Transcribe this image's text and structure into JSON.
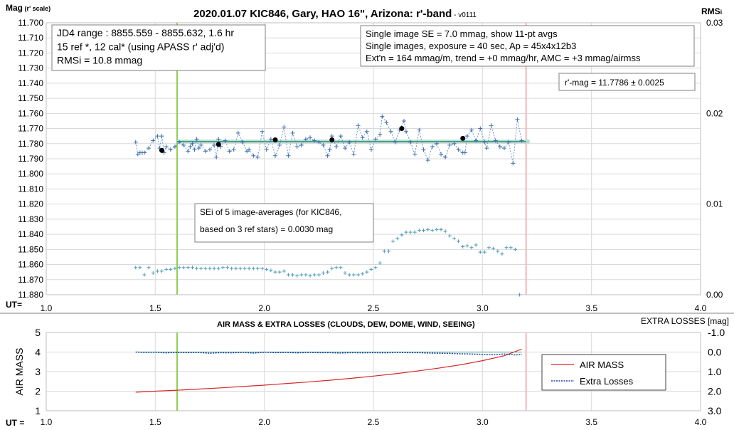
{
  "chart_data": [
    {
      "type": "scatter",
      "title": "2020.01.07 KIC846, Gary, HAO 16\", Arizona: r'-band",
      "version": " - v0111",
      "ylabel": "Mag",
      "ylabel_sub": " (r' scale)",
      "y2label": "RMS",
      "y2label_sub": "i",
      "xlabel": "UT=",
      "xlim": [
        1.0,
        4.0
      ],
      "ylim": [
        11.88,
        11.7
      ],
      "y2lim": [
        0.0,
        0.03
      ],
      "x_ticks": [
        "1.0",
        "1.5",
        "2.0",
        "2.5",
        "3.0",
        "3.5",
        "4.0"
      ],
      "y_ticks": [
        "11.700",
        "11.710",
        "11.720",
        "11.730",
        "11.740",
        "11.750",
        "11.760",
        "11.770",
        "11.780",
        "11.790",
        "11.800",
        "11.810",
        "11.820",
        "11.830",
        "11.840",
        "11.850",
        "11.860",
        "11.870",
        "11.880"
      ],
      "y2_ticks": [
        "0.03",
        "0.02",
        "0.01",
        "0.00"
      ],
      "vlines": [
        {
          "x": 1.6,
          "color": "#8fd14f"
        },
        {
          "x": 3.2,
          "color": "#f4b6b6"
        }
      ],
      "fit_line": {
        "x": [
          1.6,
          3.2
        ],
        "y": 11.7786
      },
      "info_left": [
        "JD4 range : 8855.559 - 8855.632,  1.6  hr",
        "15 ref *, 12 cal* (using APASS r' adj'd)",
        "RMSi = 10.8 mmag"
      ],
      "info_right": [
        "Single image SE = 7.0 mmag, show  11-pt avgs",
        "Single images, exposure = 40 sec, Ap = 45x4x12b3",
        "Ext'n = 164 mmag/m, trend =  +0 mmag/hr, AMC = +3 mmag/airmss"
      ],
      "rmag_label": "r'-mag = 11.7786 ± 0.0025",
      "sei_note": [
        "SEi of 5 image-averages (for KIC846,",
        "based on 3 ref stars) = 0.0030 mag"
      ],
      "series": [
        {
          "name": "single images",
          "color": "#4a7ebb",
          "x": [
            1.41,
            1.42,
            1.43,
            1.44,
            1.45,
            1.47,
            1.49,
            1.51,
            1.52,
            1.53,
            1.54,
            1.55,
            1.57,
            1.59,
            1.61,
            1.63,
            1.65,
            1.66,
            1.67,
            1.68,
            1.69,
            1.7,
            1.71,
            1.73,
            1.75,
            1.77,
            1.78,
            1.79,
            1.8,
            1.82,
            1.84,
            1.86,
            1.88,
            1.9,
            1.92,
            1.93,
            1.95,
            1.97,
            1.99,
            2.01,
            2.03,
            2.05,
            2.07,
            2.09,
            2.11,
            2.13,
            2.15,
            2.17,
            2.19,
            2.21,
            2.23,
            2.25,
            2.27,
            2.29,
            2.3,
            2.31,
            2.33,
            2.35,
            2.37,
            2.39,
            2.41,
            2.43,
            2.45,
            2.47,
            2.49,
            2.51,
            2.53,
            2.54,
            2.56,
            2.58,
            2.6,
            2.62,
            2.64,
            2.65,
            2.67,
            2.69,
            2.71,
            2.73,
            2.75,
            2.77,
            2.79,
            2.81,
            2.83,
            2.85,
            2.87,
            2.89,
            2.91,
            2.92,
            2.93,
            2.95,
            2.97,
            2.99,
            3.01,
            3.02,
            3.04,
            3.06,
            3.08,
            3.1,
            3.12,
            3.14,
            3.16,
            3.18
          ],
          "y": [
            11.779,
            11.787,
            11.786,
            11.786,
            11.786,
            11.783,
            11.778,
            11.775,
            11.783,
            11.775,
            11.786,
            11.782,
            11.784,
            11.782,
            11.779,
            11.781,
            11.785,
            11.782,
            11.78,
            11.784,
            11.777,
            11.783,
            11.781,
            11.785,
            11.784,
            11.781,
            11.789,
            11.777,
            11.782,
            11.778,
            11.785,
            11.784,
            11.773,
            11.779,
            11.785,
            11.784,
            11.788,
            11.789,
            11.772,
            11.784,
            11.777,
            11.788,
            11.781,
            11.769,
            11.788,
            11.773,
            11.782,
            11.781,
            11.777,
            11.776,
            11.778,
            11.779,
            11.781,
            11.788,
            11.784,
            11.775,
            11.782,
            11.775,
            11.783,
            11.779,
            11.787,
            11.768,
            11.776,
            11.772,
            11.784,
            11.777,
            11.774,
            11.762,
            11.766,
            11.772,
            11.779,
            11.771,
            11.765,
            11.772,
            11.779,
            11.787,
            11.771,
            11.784,
            11.791,
            11.782,
            11.78,
            11.787,
            11.789,
            11.781,
            11.78,
            11.784,
            11.786,
            11.786,
            11.775,
            11.771,
            11.778,
            11.77,
            11.779,
            11.783,
            11.768,
            11.778,
            11.782,
            11.783,
            11.779,
            11.793,
            11.764,
            11.778
          ]
        },
        {
          "name": "11-pt averages",
          "color": "#000000",
          "x": [
            1.53,
            1.79,
            2.05,
            2.31,
            2.63,
            2.91
          ],
          "y": [
            11.7845,
            11.7805,
            11.7775,
            11.7775,
            11.77,
            11.7765
          ]
        },
        {
          "name": "RMSi",
          "axis": "y2",
          "color": "#4a9ab8",
          "x": [
            1.41,
            1.43,
            1.45,
            1.47,
            1.49,
            1.51,
            1.53,
            1.55,
            1.57,
            1.59,
            1.61,
            1.63,
            1.65,
            1.67,
            1.69,
            1.71,
            1.73,
            1.75,
            1.77,
            1.79,
            1.81,
            1.83,
            1.85,
            1.87,
            1.89,
            1.91,
            1.93,
            1.95,
            1.97,
            1.99,
            2.01,
            2.03,
            2.05,
            2.07,
            2.09,
            2.11,
            2.13,
            2.15,
            2.17,
            2.19,
            2.21,
            2.23,
            2.25,
            2.27,
            2.29,
            2.31,
            2.33,
            2.35,
            2.37,
            2.39,
            2.41,
            2.43,
            2.45,
            2.47,
            2.49,
            2.51,
            2.53,
            2.55,
            2.57,
            2.59,
            2.61,
            2.63,
            2.65,
            2.67,
            2.69,
            2.71,
            2.73,
            2.75,
            2.77,
            2.79,
            2.81,
            2.83,
            2.85,
            2.87,
            2.89,
            2.91,
            2.93,
            2.95,
            2.97,
            2.99,
            3.01,
            3.03,
            3.05,
            3.07,
            3.09,
            3.11,
            3.13,
            3.15,
            3.17
          ],
          "y": [
            0.003,
            0.003,
            0.0022,
            0.003,
            0.0024,
            0.0026,
            0.0026,
            0.0028,
            0.0028,
            0.0029,
            0.003,
            0.003,
            0.003,
            0.003,
            0.0029,
            0.0029,
            0.0029,
            0.0029,
            0.0029,
            0.0029,
            0.003,
            0.003,
            0.0029,
            0.0029,
            0.0029,
            0.0029,
            0.0029,
            0.0029,
            0.0029,
            0.0029,
            0.0028,
            0.0027,
            0.0025,
            0.0025,
            0.0026,
            0.0022,
            0.0022,
            0.0021,
            0.0022,
            0.0022,
            0.0021,
            0.0022,
            0.0022,
            0.0024,
            0.0025,
            0.0029,
            0.003,
            0.003,
            0.0024,
            0.0022,
            0.0022,
            0.0022,
            0.0023,
            0.0025,
            0.0028,
            0.003,
            0.0035,
            0.0048,
            0.0048,
            0.0059,
            0.0062,
            0.0066,
            0.0069,
            0.0069,
            0.0069,
            0.0071,
            0.0071,
            0.0072,
            0.0071,
            0.0072,
            0.0072,
            0.007,
            0.0065,
            0.0062,
            0.0059,
            0.0053,
            0.0054,
            0.0052,
            0.0055,
            0.0047,
            0.0047,
            0.0052,
            0.0051,
            0.0048,
            0.0045,
            0.0052,
            0.0052,
            0.005,
            0.0
          ]
        }
      ]
    },
    {
      "type": "line",
      "title": "AIR MASS & EXTRA LOSSES (CLOUDS, DEW, DOME, WIND, SEEING)",
      "ylabel": "AIR MASS",
      "y2label": "EXTRA LOSSES [mag]",
      "xlabel": "UT =",
      "xlim": [
        1.0,
        4.0
      ],
      "ylim": [
        1,
        5
      ],
      "y2lim": [
        3.0,
        -1.0
      ],
      "x_ticks": [
        "1.0",
        "1.5",
        "2.0",
        "2.5",
        "3.0",
        "3.5",
        "4.0"
      ],
      "y_ticks": [
        "1",
        "2",
        "3",
        "4",
        "5"
      ],
      "y2_ticks": [
        "-1.0",
        "0.0",
        "1.0",
        "2.0",
        "3.0"
      ],
      "vlines": [
        {
          "x": 1.6,
          "color": "#8fd14f"
        },
        {
          "x": 3.2,
          "color": "#f4b6b6"
        }
      ],
      "legend": [
        "AIR MASS",
        "Extra Losses"
      ],
      "series": [
        {
          "name": "AIR MASS",
          "color": "#d62728",
          "x": [
            1.41,
            1.5,
            1.6,
            1.7,
            1.8,
            1.9,
            2.0,
            2.1,
            2.2,
            2.3,
            2.4,
            2.5,
            2.6,
            2.7,
            2.8,
            2.9,
            3.0,
            3.1,
            3.18
          ],
          "y": [
            1.95,
            2.0,
            2.05,
            2.11,
            2.17,
            2.24,
            2.31,
            2.39,
            2.47,
            2.56,
            2.66,
            2.77,
            2.89,
            3.03,
            3.18,
            3.35,
            3.56,
            3.81,
            4.15
          ]
        },
        {
          "name": "Extra Losses",
          "axis": "y2",
          "color": "#1f3fa8",
          "x": [
            1.41,
            1.45,
            1.5,
            1.55,
            1.6,
            1.65,
            1.7,
            1.75,
            1.8,
            1.85,
            1.9,
            1.95,
            2.0,
            2.05,
            2.1,
            2.15,
            2.2,
            2.25,
            2.3,
            2.35,
            2.4,
            2.45,
            2.5,
            2.55,
            2.6,
            2.65,
            2.7,
            2.75,
            2.8,
            2.85,
            2.9,
            2.95,
            3.0,
            3.05,
            3.1,
            3.15,
            3.18
          ],
          "y": [
            0.0,
            0.02,
            0.01,
            0.04,
            0.02,
            0.03,
            0.02,
            0.06,
            0.03,
            0.04,
            0.02,
            0.05,
            0.01,
            0.03,
            0.02,
            0.04,
            0.02,
            0.03,
            0.03,
            0.05,
            0.03,
            0.04,
            0.03,
            0.04,
            0.02,
            0.03,
            0.03,
            0.05,
            0.06,
            0.07,
            0.09,
            0.1,
            0.12,
            0.14,
            0.1,
            0.15,
            0.12
          ]
        }
      ]
    }
  ]
}
